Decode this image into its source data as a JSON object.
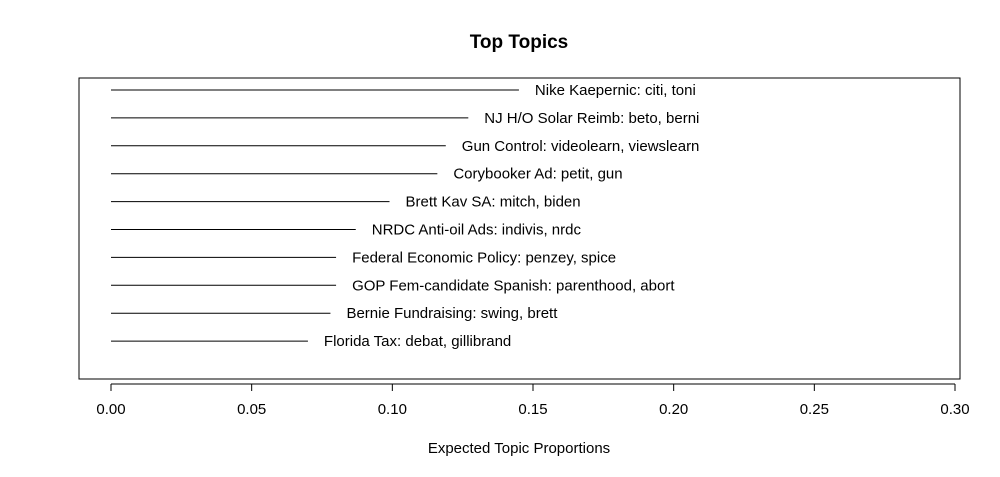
{
  "chart_data": {
    "type": "bar",
    "orientation": "horizontal",
    "title": "Top Topics",
    "xlabel": "Expected Topic Proportions",
    "ylabel": "",
    "xlim": [
      0,
      0.3
    ],
    "x_ticks": [
      "0.00",
      "0.05",
      "0.10",
      "0.15",
      "0.20",
      "0.25",
      "0.30"
    ],
    "grid": false,
    "categories": [
      "Nike Kaepernic: citi, toni",
      "NJ H/O Solar Reimb: beto, berni",
      "Gun Control: videolearn, viewslearn",
      "Corybooker Ad: petit, gun",
      "Brett Kav SA: mitch, biden",
      "NRDC Anti-oil Ads: indivis, nrdc",
      "Federal Economic Policy: penzey, spice",
      "GOP Fem-candidate Spanish: parenthood, abort",
      "Bernie Fundraising: swing, brett",
      "Florida Tax: debat, gillibrand"
    ],
    "values": [
      0.145,
      0.127,
      0.119,
      0.116,
      0.099,
      0.087,
      0.08,
      0.08,
      0.078,
      0.07
    ]
  }
}
